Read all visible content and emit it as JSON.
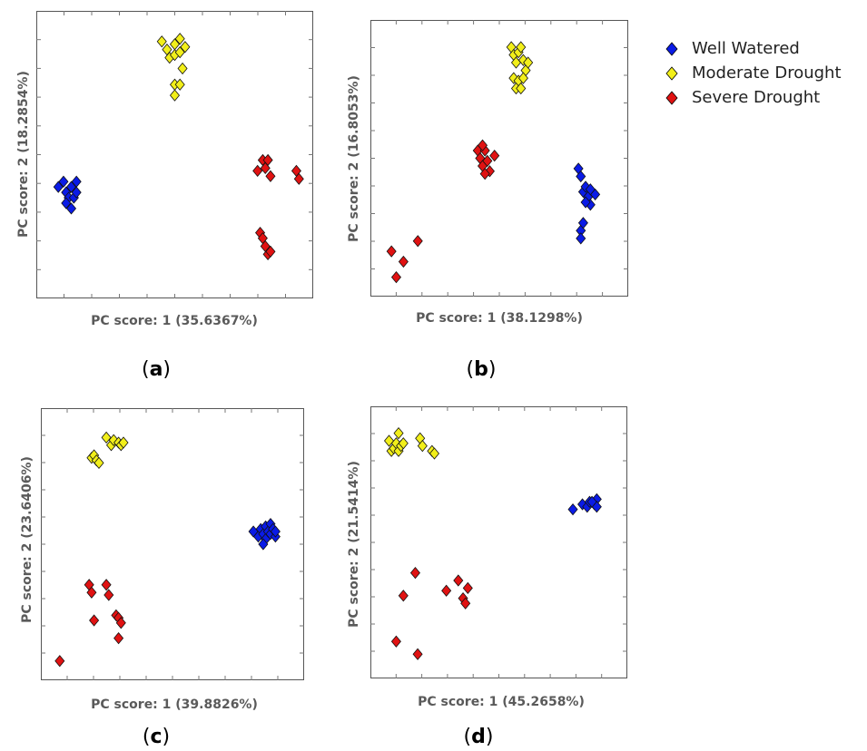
{
  "legend": {
    "items": [
      {
        "label": "Well Watered",
        "color": "#0a1be6"
      },
      {
        "label": "Moderate Drought",
        "color": "#f2ef1a"
      },
      {
        "label": "Severe Drought",
        "color": "#e01212"
      }
    ]
  },
  "chart_data": [
    {
      "type": "scatter",
      "panel_label": "a",
      "xlabel": "PC score: 1 (35.6367%)",
      "ylabel": "PC score: 2 (18.2854%)",
      "grid": false,
      "series": [
        {
          "name": "Well Watered",
          "color": "#0a1be6",
          "points": [
            [
              0.05,
              0.62
            ],
            [
              0.07,
              0.6
            ],
            [
              0.08,
              0.64
            ],
            [
              0.09,
              0.66
            ],
            [
              0.08,
              0.68
            ],
            [
              0.1,
              0.62
            ],
            [
              0.11,
              0.66
            ],
            [
              0.12,
              0.64
            ],
            [
              0.1,
              0.7
            ],
            [
              0.12,
              0.6
            ]
          ]
        },
        {
          "name": "Moderate Drought",
          "color": "#f2ef1a",
          "points": [
            [
              0.45,
              0.08
            ],
            [
              0.47,
              0.11
            ],
            [
              0.48,
              0.14
            ],
            [
              0.5,
              0.09
            ],
            [
              0.5,
              0.13
            ],
            [
              0.52,
              0.12
            ],
            [
              0.52,
              0.07
            ],
            [
              0.53,
              0.18
            ],
            [
              0.54,
              0.1
            ],
            [
              0.5,
              0.24
            ],
            [
              0.5,
              0.28
            ],
            [
              0.52,
              0.24
            ]
          ]
        },
        {
          "name": "Severe Drought",
          "color": "#e01212",
          "points": [
            [
              0.82,
              0.56
            ],
            [
              0.84,
              0.52
            ],
            [
              0.85,
              0.55
            ],
            [
              0.86,
              0.52
            ],
            [
              0.87,
              0.58
            ],
            [
              0.83,
              0.79
            ],
            [
              0.84,
              0.81
            ],
            [
              0.85,
              0.84
            ],
            [
              0.86,
              0.87
            ],
            [
              0.87,
              0.86
            ],
            [
              0.97,
              0.56
            ],
            [
              0.98,
              0.59
            ]
          ]
        }
      ]
    },
    {
      "type": "scatter",
      "panel_label": "b",
      "xlabel": "PC score: 1 (38.1298%)",
      "ylabel": "PC score: 2 (16.8053%)",
      "grid": false,
      "series": [
        {
          "name": "Well Watered",
          "color": "#0a1be6",
          "points": [
            [
              0.83,
              0.54
            ],
            [
              0.84,
              0.57
            ],
            [
              0.85,
              0.63
            ],
            [
              0.86,
              0.61
            ],
            [
              0.87,
              0.65
            ],
            [
              0.88,
              0.68
            ],
            [
              0.9,
              0.64
            ],
            [
              0.84,
              0.78
            ],
            [
              0.84,
              0.81
            ],
            [
              0.85,
              0.75
            ],
            [
              0.86,
              0.67
            ],
            [
              0.88,
              0.62
            ]
          ]
        },
        {
          "name": "Moderate Drought",
          "color": "#f2ef1a",
          "points": [
            [
              0.55,
              0.07
            ],
            [
              0.56,
              0.1
            ],
            [
              0.57,
              0.13
            ],
            [
              0.58,
              0.09
            ],
            [
              0.59,
              0.07
            ],
            [
              0.6,
              0.12
            ],
            [
              0.61,
              0.16
            ],
            [
              0.62,
              0.13
            ],
            [
              0.56,
              0.19
            ],
            [
              0.58,
              0.2
            ],
            [
              0.6,
              0.19
            ],
            [
              0.57,
              0.23
            ],
            [
              0.59,
              0.23
            ]
          ]
        },
        {
          "name": "Severe Drought",
          "color": "#e01212",
          "points": [
            [
              0.41,
              0.47
            ],
            [
              0.42,
              0.5
            ],
            [
              0.43,
              0.53
            ],
            [
              0.44,
              0.47
            ],
            [
              0.45,
              0.51
            ],
            [
              0.46,
              0.55
            ],
            [
              0.48,
              0.49
            ],
            [
              0.44,
              0.56
            ],
            [
              0.43,
              0.45
            ],
            [
              0.05,
              0.86
            ],
            [
              0.1,
              0.9
            ],
            [
              0.16,
              0.82
            ],
            [
              0.07,
              0.96
            ]
          ]
        }
      ]
    },
    {
      "type": "scatter",
      "panel_label": "c",
      "xlabel": "PC score: 1 (39.8826%)",
      "ylabel": "PC score: 2 (23.6406%)",
      "grid": false,
      "series": [
        {
          "name": "Well Watered",
          "color": "#0a1be6",
          "points": [
            [
              0.83,
              0.45
            ],
            [
              0.85,
              0.47
            ],
            [
              0.86,
              0.44
            ],
            [
              0.87,
              0.46
            ],
            [
              0.88,
              0.48
            ],
            [
              0.88,
              0.43
            ],
            [
              0.89,
              0.45
            ],
            [
              0.9,
              0.46
            ],
            [
              0.9,
              0.42
            ],
            [
              0.91,
              0.44
            ],
            [
              0.92,
              0.47
            ],
            [
              0.92,
              0.45
            ],
            [
              0.87,
              0.5
            ]
          ]
        },
        {
          "name": "Moderate Drought",
          "color": "#f2ef1a",
          "points": [
            [
              0.17,
              0.16
            ],
            [
              0.18,
              0.15
            ],
            [
              0.19,
              0.17
            ],
            [
              0.2,
              0.18
            ],
            [
              0.23,
              0.08
            ],
            [
              0.25,
              0.11
            ],
            [
              0.26,
              0.09
            ],
            [
              0.28,
              0.1
            ],
            [
              0.29,
              0.11
            ],
            [
              0.3,
              0.1
            ]
          ]
        },
        {
          "name": "Severe Drought",
          "color": "#e01212",
          "points": [
            [
              0.16,
              0.66
            ],
            [
              0.17,
              0.69
            ],
            [
              0.23,
              0.66
            ],
            [
              0.24,
              0.7
            ],
            [
              0.18,
              0.8
            ],
            [
              0.27,
              0.78
            ],
            [
              0.28,
              0.79
            ],
            [
              0.29,
              0.81
            ],
            [
              0.28,
              0.87
            ],
            [
              0.04,
              0.96
            ]
          ]
        }
      ]
    },
    {
      "type": "scatter",
      "panel_label": "d",
      "xlabel": "PC score: 1 (45.2658%)",
      "ylabel": "PC score: 2 (21.5414%)",
      "grid": false,
      "series": [
        {
          "name": "Well Watered",
          "color": "#0a1be6",
          "points": [
            [
              0.81,
              0.37
            ],
            [
              0.85,
              0.35
            ],
            [
              0.87,
              0.36
            ],
            [
              0.88,
              0.34
            ],
            [
              0.9,
              0.35
            ],
            [
              0.91,
              0.33
            ],
            [
              0.91,
              0.36
            ],
            [
              0.89,
              0.34
            ]
          ]
        },
        {
          "name": "Moderate Drought",
          "color": "#f2ef1a",
          "points": [
            [
              0.04,
              0.1
            ],
            [
              0.05,
              0.14
            ],
            [
              0.06,
              0.13
            ],
            [
              0.07,
              0.11
            ],
            [
              0.08,
              0.14
            ],
            [
              0.09,
              0.12
            ],
            [
              0.1,
              0.11
            ],
            [
              0.08,
              0.07
            ],
            [
              0.17,
              0.09
            ],
            [
              0.18,
              0.12
            ],
            [
              0.22,
              0.14
            ],
            [
              0.23,
              0.15
            ]
          ]
        },
        {
          "name": "Severe Drought",
          "color": "#e01212",
          "points": [
            [
              0.15,
              0.62
            ],
            [
              0.1,
              0.71
            ],
            [
              0.28,
              0.69
            ],
            [
              0.33,
              0.65
            ],
            [
              0.37,
              0.68
            ],
            [
              0.35,
              0.72
            ],
            [
              0.36,
              0.74
            ],
            [
              0.07,
              0.89
            ],
            [
              0.16,
              0.94
            ]
          ]
        }
      ]
    }
  ]
}
